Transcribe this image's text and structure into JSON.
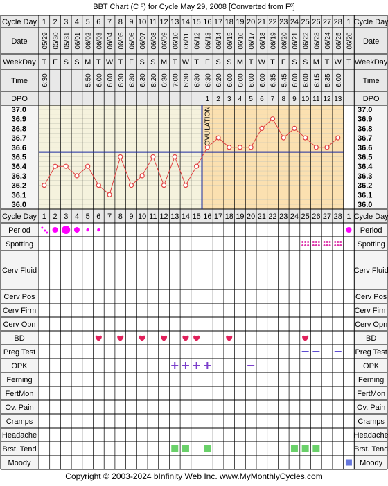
{
  "title": "BBT Chart (C º) for Cycle May 29, 2008  [Converted from Fº]",
  "footer": "Copyright © 2003-2024 bInfinity Web Inc.    www.MyMonthlyCycles.com",
  "row_labels": {
    "cycle_day": "Cycle Day",
    "date": "Date",
    "weekday": "WeekDay",
    "time": "Time",
    "dpo": "DPO",
    "period": "Period",
    "spotting": "Spotting",
    "cerv_fluid": "Cerv Fluid",
    "cerv_pos": "Cerv Pos",
    "cerv_firm": "Cerv Firm",
    "cerv_opn": "Cerv Opn",
    "bd": "BD",
    "preg_test": "Preg Test",
    "opk": "OPK",
    "ferning": "Ferning",
    "fertmon": "FertMon",
    "ov_pain": "Ov. Pain",
    "cramps": "Cramps",
    "headache": "Headache",
    "brst_tend": "Brst. Tend",
    "moody": "Moody"
  },
  "ovulation_label": "OVULATION",
  "colors": {
    "temp_line": "#e04040",
    "grid_bg": "#f5f2dd",
    "post_ov_bg": "#fbe0b0",
    "coverline": "#1e2d9e",
    "period_dot": "#ff00ff",
    "spotting_dot": "#dd33aa",
    "bd_heart": "#e0205a",
    "opk": "#7b3ecb",
    "preg": "#5c4bd1",
    "brst_tend": "#6ad16a",
    "moody": "#6677dd"
  },
  "days": [
    "1",
    "2",
    "3",
    "4",
    "5",
    "6",
    "7",
    "8",
    "9",
    "10",
    "11",
    "12",
    "13",
    "14",
    "15",
    "16",
    "17",
    "18",
    "19",
    "20",
    "21",
    "22",
    "23",
    "24",
    "25",
    "26",
    "27",
    "28",
    "1"
  ],
  "dates": [
    "05/29",
    "05/30",
    "05/31",
    "06/01",
    "06/02",
    "06/03",
    "06/04",
    "06/05",
    "06/06",
    "06/07",
    "06/08",
    "06/09",
    "06/10",
    "06/11",
    "06/12",
    "06/13",
    "06/14",
    "06/15",
    "06/16",
    "06/17",
    "06/18",
    "06/19",
    "06/20",
    "06/21",
    "06/22",
    "06/23",
    "06/24",
    "06/25",
    "06/26"
  ],
  "weekdays": [
    "T",
    "F",
    "S",
    "S",
    "M",
    "T",
    "W",
    "T",
    "F",
    "S",
    "S",
    "M",
    "T",
    "W",
    "T",
    "F",
    "S",
    "S",
    "M",
    "T",
    "W",
    "T",
    "F",
    "S",
    "S",
    "M",
    "T",
    "W",
    "T"
  ],
  "times": [
    "6:30",
    "",
    "",
    "",
    "5:50",
    "6:00",
    "6:00",
    "6:30",
    "6:30",
    "6:30",
    "8:20",
    "6:30",
    "7:00",
    "6:30",
    "6:30",
    "6:30",
    "6:20",
    "6:00",
    "6:00",
    "6:00",
    "6:00",
    "6:35",
    "5:45",
    "6:00",
    "6:00",
    "6:15",
    "5:35",
    "6:00",
    ""
  ],
  "dpo": [
    "",
    "",
    "",
    "",
    "",
    "",
    "",
    "",
    "",
    "",
    "",
    "",
    "",
    "",
    "",
    "1",
    "2",
    "3",
    "4",
    "5",
    "6",
    "7",
    "8",
    "9",
    "10",
    "11",
    "12",
    "13",
    ""
  ],
  "chart_data": {
    "type": "line",
    "title": "BBT Chart (C º) for Cycle May 29, 2008  [Converted from Fº]",
    "xlabel": "Cycle Day",
    "ylabel": "",
    "ylim": [
      36.0,
      37.0
    ],
    "y_ticks": [
      "37.0",
      "36.9",
      "36.8",
      "36.7",
      "36.6",
      "36.5",
      "36.4",
      "36.3",
      "36.2",
      "36.1",
      "36.0"
    ],
    "x": [
      1,
      2,
      3,
      4,
      5,
      6,
      7,
      8,
      9,
      10,
      11,
      12,
      13,
      14,
      15,
      16,
      17,
      18,
      19,
      20,
      21,
      22,
      23,
      24,
      25,
      26,
      27,
      28
    ],
    "series": [
      {
        "values": [
          36.2,
          36.4,
          36.4,
          36.3,
          36.4,
          36.2,
          36.1,
          36.5,
          36.2,
          36.3,
          36.5,
          36.2,
          36.5,
          36.2,
          36.4,
          36.6,
          36.7,
          36.6,
          36.6,
          36.6,
          36.8,
          36.9,
          36.7,
          36.8,
          36.7,
          36.6,
          36.6,
          36.7
        ]
      }
    ],
    "coverline": 36.55,
    "ovulation_day": 15
  },
  "period": {
    "1": "light",
    "2": "medium",
    "3": "heavy",
    "4": "medium",
    "5": "spot",
    "6": "spot",
    "29": "medium"
  },
  "spotting_days": [
    25,
    26,
    27,
    28
  ],
  "bd_days": [
    6,
    8,
    10,
    12,
    14,
    15,
    18,
    25
  ],
  "preg_test_days": [
    25,
    26,
    28
  ],
  "opk_pos_days": [
    13,
    14,
    15,
    16
  ],
  "opk_neg_days": [
    20
  ],
  "brst_tend_days": [
    13,
    14,
    16,
    24,
    25,
    26
  ],
  "moody_days": [
    29
  ]
}
